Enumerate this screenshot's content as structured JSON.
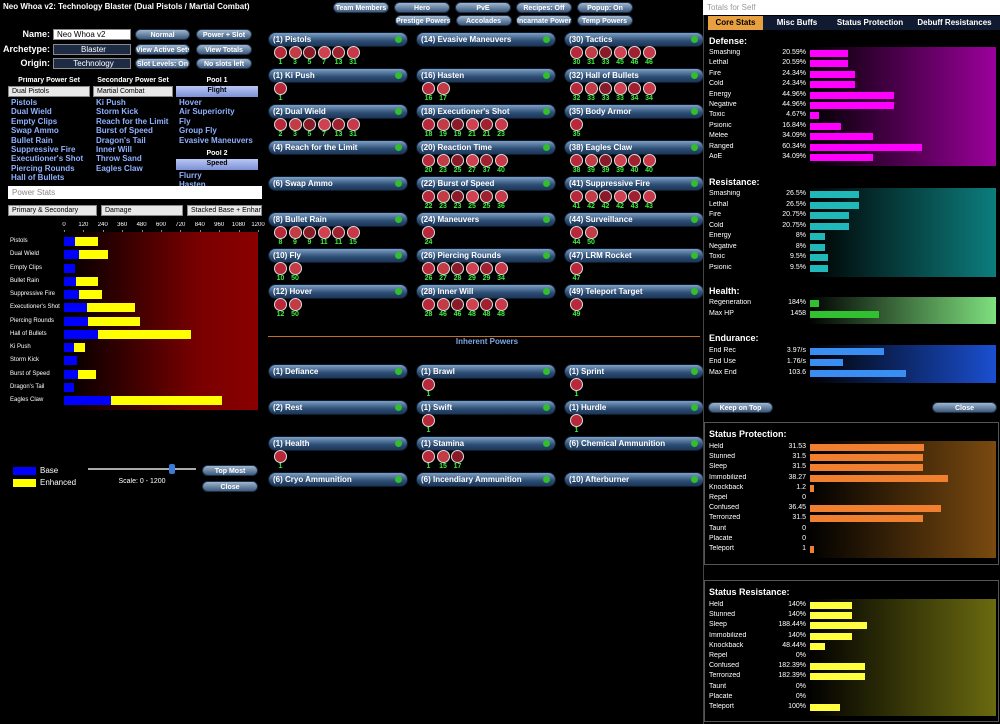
{
  "window_title": "Neo Whoa v2: Technology Blaster (Dual Pistols / Martial Combat)",
  "build": {
    "name_label": "Name:",
    "name": "Neo Whoa v2",
    "archetype_label": "Archetype:",
    "archetype": "Blaster",
    "origin_label": "Origin:",
    "origin": "Technology"
  },
  "build_buttons": [
    "Normal",
    "Power + Slot",
    "View Active Sets",
    "View Totals",
    "Slot Levels: On",
    "No slots left"
  ],
  "top_buttons": [
    "Team Members",
    "Hero",
    "PvE",
    "Recipes: Off",
    "Popup: On",
    "Prestige Powers",
    "Accolades",
    "Incarnate Powers",
    "Temp Powers"
  ],
  "power_sets": [
    {
      "header": "Primary Power Set",
      "selected": "Dual Pistols",
      "powers": [
        "Pistols",
        "Dual Wield",
        "Empty Clips",
        "Swap Ammo",
        "Bullet Rain",
        "Suppressive Fire",
        "Executioner's Shot",
        "Piercing Rounds",
        "Hall of Bullets"
      ]
    },
    {
      "header": "Secondary Power Set",
      "selected": "Martial Combat",
      "powers": [
        "Ki Push",
        "Storm Kick",
        "Reach for the Limit",
        "Burst of Speed",
        "Dragon's Tail",
        "Inner Will",
        "Throw Sand",
        "Eagles Claw"
      ]
    },
    {
      "header": "Pool 1",
      "selected": "Flight",
      "powers": [
        "Hover",
        "Air Superiority",
        "Fly",
        "Group Fly",
        "Evasive Maneuvers"
      ]
    },
    {
      "header": "Pool 2",
      "selected": "Speed",
      "powers": [
        "Flurry",
        "Hasten"
      ]
    }
  ],
  "power_stats": {
    "title": "Power Stats",
    "filters": [
      "Primary & Secondary",
      "Damage",
      "Stacked Base + Enhanced"
    ],
    "xlim": [
      0,
      1200
    ],
    "xticks": [
      0,
      120,
      240,
      360,
      480,
      600,
      720,
      840,
      960,
      1080,
      1200
    ],
    "categories": [
      "Pistols",
      "Dual Wield",
      "Empty Clips",
      "Bullet Rain",
      "Suppressive Fire",
      "Executioner's Shot",
      "Piercing Rounds",
      "Hall of Bullets",
      "Ki Push",
      "Storm Kick",
      "Burst of Speed",
      "Dragon's Tail",
      "Eagles Claw"
    ],
    "series": [
      {
        "name": "Base",
        "color": "#0000ff",
        "values": [
          70,
          90,
          70,
          75,
          95,
          145,
          150,
          210,
          60,
          80,
          85,
          60,
          290
        ]
      },
      {
        "name": "Enhanced",
        "color": "#ffff00",
        "values": [
          140,
          185,
          0,
          135,
          140,
          295,
          320,
          575,
          70,
          0,
          115,
          0,
          685
        ]
      }
    ],
    "scale_label": "Scale: 0 - 1200",
    "buttons": [
      "Top Most",
      "Close"
    ]
  },
  "powers": [
    {
      "label": "(1) Pistols",
      "slots": [
        1,
        3,
        5,
        7,
        13,
        31
      ]
    },
    {
      "label": "(1) Ki Push",
      "slots": [
        1
      ]
    },
    {
      "label": "(2) Dual Wield",
      "slots": [
        2,
        3,
        5,
        7,
        13,
        31
      ]
    },
    {
      "label": "(4) Reach for the Limit"
    },
    {
      "label": "(6) Swap Ammo"
    },
    {
      "label": "(8) Bullet Rain",
      "slots": [
        8,
        9,
        9,
        11,
        11,
        15
      ]
    },
    {
      "label": "(10) Fly",
      "slots": [
        10,
        50
      ]
    },
    {
      "label": "(12) Hover",
      "slots": [
        12,
        50
      ]
    },
    {
      "label": "(14) Evasive Maneuvers"
    },
    {
      "label": "(16) Hasten",
      "slots": [
        16,
        17
      ]
    },
    {
      "label": "(18) Executioner's Shot",
      "slots": [
        18,
        19,
        19,
        21,
        21,
        23
      ]
    },
    {
      "label": "(20) Reaction Time",
      "slots": [
        20,
        23,
        25,
        27,
        37,
        40
      ]
    },
    {
      "label": "(22) Burst of Speed",
      "slots": [
        22,
        23,
        23,
        25,
        25,
        36
      ]
    },
    {
      "label": "(24) Maneuvers",
      "slots": [
        24
      ]
    },
    {
      "label": "(26) Piercing Rounds",
      "slots": [
        26,
        27,
        28,
        29,
        29,
        34
      ]
    },
    {
      "label": "(28) Inner Will",
      "slots": [
        28,
        46,
        46,
        48,
        48,
        48
      ]
    },
    {
      "label": "(30) Tactics",
      "slots": [
        30,
        31,
        33,
        45,
        46,
        46
      ]
    },
    {
      "label": "(32) Hall of Bullets",
      "slots": [
        32,
        33,
        33,
        33,
        34,
        34
      ]
    },
    {
      "label": "(35) Body Armor",
      "slots": [
        35
      ]
    },
    {
      "label": "(38) Eagles Claw",
      "slots": [
        38,
        39,
        39,
        39,
        40,
        40
      ]
    },
    {
      "label": "(41) Suppressive Fire",
      "slots": [
        41,
        42,
        42,
        42,
        43,
        43
      ]
    },
    {
      "label": "(44) Surveillance",
      "slots": [
        44,
        50
      ]
    },
    {
      "label": "(47) LRM Rocket",
      "slots": [
        47
      ]
    },
    {
      "label": "(49) Teleport Target",
      "slots": [
        49
      ]
    }
  ],
  "inherent": {
    "title": "Inherent Powers",
    "powers": [
      {
        "label": "(1) Defiance"
      },
      {
        "label": "(1) Brawl",
        "slots": [
          1
        ]
      },
      {
        "label": "(1) Sprint",
        "slots": [
          1
        ]
      },
      {
        "label": "(2) Rest"
      },
      {
        "label": "(1) Swift",
        "slots": [
          1
        ]
      },
      {
        "label": "(1) Hurdle",
        "slots": [
          1
        ]
      },
      {
        "label": "(1) Health",
        "slots": [
          1
        ]
      },
      {
        "label": "(1) Stamina",
        "slots": [
          1,
          15,
          17
        ]
      },
      {
        "label": "(6) Chemical Ammunition"
      },
      {
        "label": "(6) Cryo Ammunition"
      },
      {
        "label": "(6) Incendiary Ammunition"
      },
      {
        "label": "(10) Afterburner"
      }
    ]
  },
  "totals": {
    "window_title": "Totals for Self",
    "tabs": [
      "Core Stats",
      "Misc Buffs",
      "Status Protection",
      "Debuff Resistances"
    ],
    "buttons": [
      "Keep on Top",
      "Close"
    ],
    "sections": [
      {
        "title": "Defense:",
        "rows": [
          {
            "label": "Smashing",
            "value": 20.59,
            "value_label": "20.59%"
          },
          {
            "label": "Lethal",
            "value": 20.59,
            "value_label": "20.59%"
          },
          {
            "label": "Fire",
            "value": 24.34,
            "value_label": "24.34%"
          },
          {
            "label": "Cold",
            "value": 24.34,
            "value_label": "24.34%"
          },
          {
            "label": "Energy",
            "value": 44.96,
            "value_label": "44.96%"
          },
          {
            "label": "Negative",
            "value": 44.96,
            "value_label": "44.96%"
          },
          {
            "label": "Toxic",
            "value": 4.67,
            "value_label": "4.67%"
          },
          {
            "label": "Psionic",
            "value": 16.84,
            "value_label": "16.84%"
          },
          {
            "label": "Melee",
            "value": 34.09,
            "value_label": "34.09%"
          },
          {
            "label": "Ranged",
            "value": 60.34,
            "value_label": "60.34%"
          },
          {
            "label": "AoE",
            "value": 34.09,
            "value_label": "34.09%"
          }
        ]
      },
      {
        "title": "Resistance:",
        "rows": [
          {
            "label": "Smashing",
            "value": 26.5,
            "value_label": "26.5%"
          },
          {
            "label": "Lethal",
            "value": 26.5,
            "value_label": "26.5%"
          },
          {
            "label": "Fire",
            "value": 20.75,
            "value_label": "20.75%"
          },
          {
            "label": "Cold",
            "value": 20.75,
            "value_label": "20.75%"
          },
          {
            "label": "Energy",
            "value": 8,
            "value_label": "8%"
          },
          {
            "label": "Negative",
            "value": 8,
            "value_label": "8%"
          },
          {
            "label": "Toxic",
            "value": 9.5,
            "value_label": "9.5%"
          },
          {
            "label": "Psionic",
            "value": 9.5,
            "value_label": "9.5%"
          }
        ]
      },
      {
        "title": "Health:",
        "rows": [
          {
            "label": "Regeneration",
            "value": 184,
            "value_label": "184%"
          },
          {
            "label": "Max HP",
            "value": 1458
          }
        ]
      },
      {
        "title": "Endurance:",
        "rows": [
          {
            "label": "End Rec",
            "value": 3.97,
            "value_label": "3.97/s"
          },
          {
            "label": "End Use",
            "value": 1.76,
            "value_label": "1.76/s"
          },
          {
            "label": "Max End",
            "value": 103.6
          }
        ]
      },
      {
        "title": "Status Protection:",
        "rows": [
          {
            "label": "Held",
            "value": 31.53
          },
          {
            "label": "Stunned",
            "value": 31.5
          },
          {
            "label": "Sleep",
            "value": 31.5
          },
          {
            "label": "Immobilized",
            "value": 38.27
          },
          {
            "label": "Knockback",
            "value": 1.2
          },
          {
            "label": "Repel",
            "value": 0
          },
          {
            "label": "Confused",
            "value": 36.45
          },
          {
            "label": "Terrorized",
            "value": 31.5
          },
          {
            "label": "Taunt",
            "value": 0
          },
          {
            "label": "Placate",
            "value": 0
          },
          {
            "label": "Teleport",
            "value": 1
          }
        ]
      },
      {
        "title": "Status Resistance:",
        "rows": [
          {
            "label": "Held",
            "value": 140,
            "value_label": "140%"
          },
          {
            "label": "Stunned",
            "value": 140,
            "value_label": "140%"
          },
          {
            "label": "Sleep",
            "value": 188.44,
            "value_label": "188.44%"
          },
          {
            "label": "Immobilized",
            "value": 140,
            "value_label": "140%"
          },
          {
            "label": "Knockback",
            "value": 48.44,
            "value_label": "48.44%"
          },
          {
            "label": "Repel",
            "value": 0,
            "value_label": "0%"
          },
          {
            "label": "Confused",
            "value": 182.39,
            "value_label": "182.39%"
          },
          {
            "label": "Terrorized",
            "value": 182.39,
            "value_label": "182.39%"
          },
          {
            "label": "Taunt",
            "value": 0,
            "value_label": "0%"
          },
          {
            "label": "Placate",
            "value": 0,
            "value_label": "0%"
          },
          {
            "label": "Teleport",
            "value": 100,
            "value_label": "100%"
          }
        ]
      }
    ]
  }
}
